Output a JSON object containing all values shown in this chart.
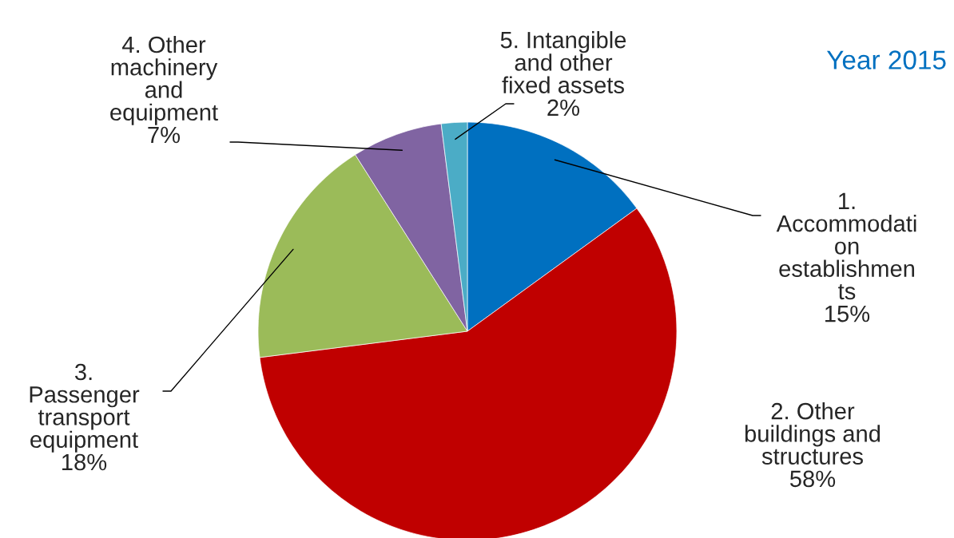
{
  "chart_data": {
    "type": "pie",
    "title": "Year 2015",
    "categories": [
      "1.\nAccommodati\non\nestablishmen\nts",
      "2. Other\nbuildings and\nstructures",
      "3.\nPassenger\ntransport\nequipment",
      "4. Other\nmachinery\nand\nequipment",
      "5. Intangible\nand other\nfixed assets"
    ],
    "values": [
      15,
      58,
      18,
      7,
      2
    ],
    "colors": [
      "#0070c0",
      "#c00000",
      "#9bbb59",
      "#8064a2",
      "#4bacc6"
    ],
    "value_labels": [
      "15%",
      "58%",
      "18%",
      "7%",
      "2%"
    ]
  }
}
